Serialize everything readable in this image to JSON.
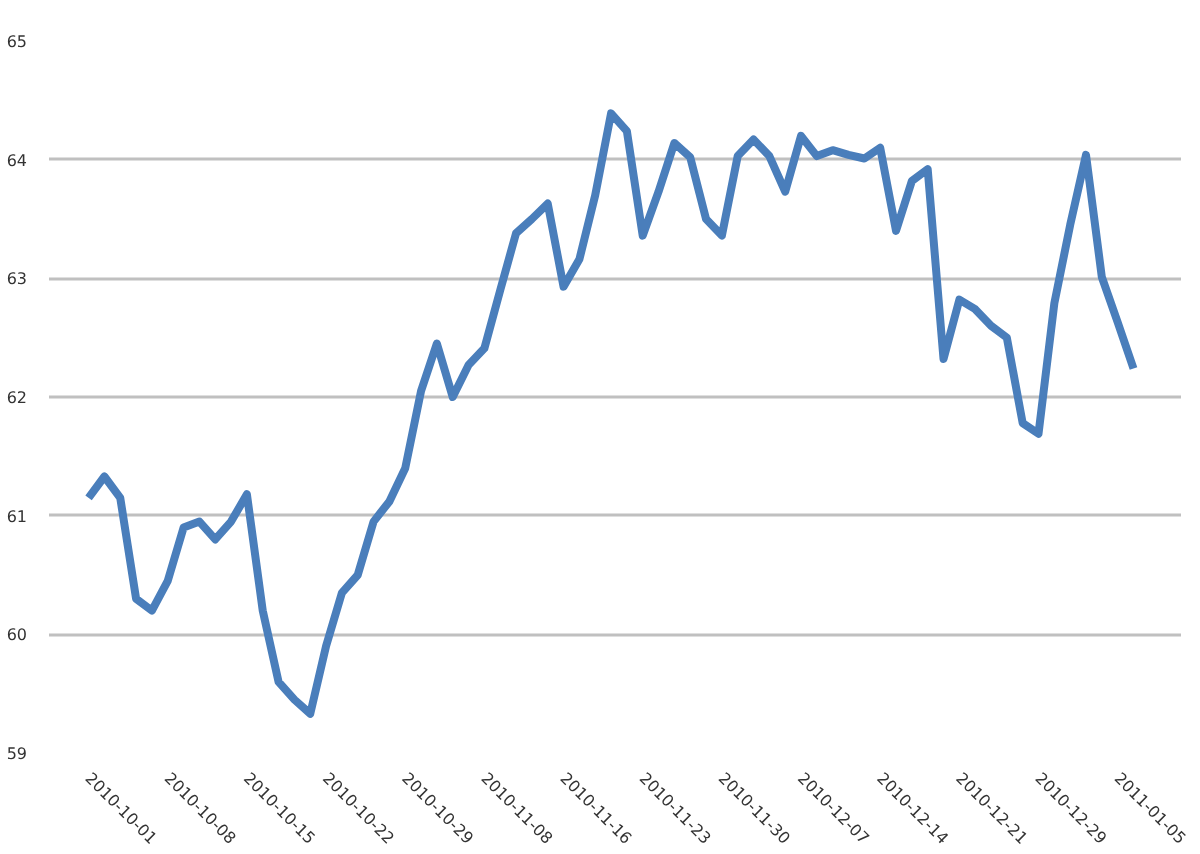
{
  "chart_data": {
    "type": "line",
    "categories": [
      "2010-10-01",
      null,
      null,
      null,
      null,
      "2010-10-08",
      null,
      null,
      null,
      null,
      "2010-10-15",
      null,
      null,
      null,
      null,
      "2010-10-22",
      null,
      null,
      null,
      null,
      "2010-10-29",
      null,
      null,
      null,
      null,
      "2010-11-08",
      null,
      null,
      null,
      null,
      "2010-11-16",
      null,
      null,
      null,
      null,
      "2010-11-23",
      null,
      null,
      null,
      null,
      "2010-11-30",
      null,
      null,
      null,
      null,
      "2010-12-07",
      null,
      null,
      null,
      null,
      "2010-12-14",
      null,
      null,
      null,
      null,
      "2010-12-21",
      null,
      null,
      null,
      null,
      "2010-12-29",
      null,
      null,
      null,
      null,
      "2011-01-05",
      null
    ],
    "series": [
      {
        "color": "#4a7ebb",
        "values": [
          61.15,
          61.33,
          61.15,
          60.3,
          60.2,
          60.45,
          60.9,
          60.95,
          60.8,
          60.95,
          61.18,
          60.2,
          59.6,
          59.45,
          59.33,
          59.9,
          60.35,
          60.5,
          60.95,
          61.12,
          61.4,
          62.05,
          62.45,
          62.0,
          62.27,
          62.41,
          62.9,
          63.38,
          63.5,
          63.63,
          62.93,
          63.16,
          63.7,
          64.39,
          64.24,
          63.36,
          63.73,
          64.14,
          64.02,
          63.5,
          63.36,
          64.03,
          64.17,
          64.03,
          63.73,
          64.2,
          64.03,
          64.08,
          64.04,
          64.01,
          64.1,
          63.4,
          63.82,
          63.92,
          62.32,
          62.82,
          62.74,
          62.6,
          62.5,
          61.78,
          61.69,
          62.79,
          63.45,
          64.04,
          63.01,
          62.63,
          62.24
        ]
      }
    ],
    "ylim": [
      59,
      65
    ],
    "yticks": [
      59,
      60,
      61,
      62,
      63,
      64,
      65
    ],
    "grid": "y",
    "marker": "none",
    "line_style": "solid"
  }
}
